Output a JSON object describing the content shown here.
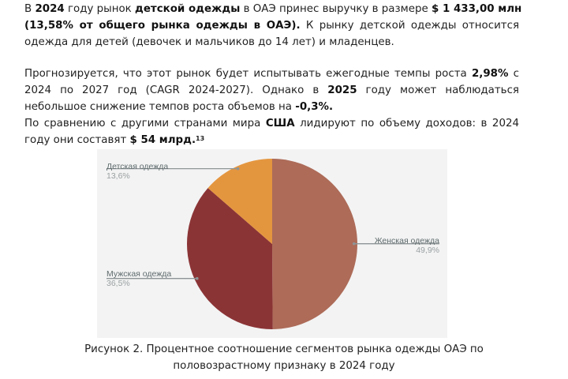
{
  "paragraph1": {
    "l1_a": "В ",
    "l1_b": "2024",
    "l1_c": " году рынок ",
    "l1_d": "детской одежды",
    "l1_e": " в ОАЭ принес выручку в размере ",
    "l1_f": "$ 1 433,00 млн",
    "l2_a": "(13,58% от общего рынка одежды в ОАЭ).",
    "l2_b": " К рынку детской одежды относится",
    "l3": "одежда для детей (девочек и мальчиков до 14 лет) и младенцев."
  },
  "paragraph2": {
    "l1_a": "Прогнозируется, что этот рынок будет испытывать ежегодные темпы роста ",
    "l1_b": "2,98%",
    "l1_c": " с",
    "l2_a": "2024 по 2027 год (CAGR 2024-2027). Однако в ",
    "l2_b": "2025",
    "l2_c": " году может наблюдаться",
    "l3_a": "небольшое снижение темпов роста объемов на ",
    "l3_b": "-0,3%."
  },
  "paragraph3": {
    "l1_a": "По сравнению с другими странами мира ",
    "l1_b": "США",
    "l1_c": " лидируют по объему доходов: в 2024",
    "l2_a": "году они составят ",
    "l2_b": "$ 54 млрд.",
    "l2_sup": "13"
  },
  "chart_data": {
    "type": "pie",
    "title": "",
    "categories": [
      "Женская одежда",
      "Мужская одежда",
      "Детская одежда"
    ],
    "values": [
      49.9,
      36.5,
      13.6
    ],
    "value_labels": [
      "49,9%",
      "36,5%",
      "13,6%"
    ],
    "colors": [
      "#ad6b58",
      "#8b3436",
      "#e4963f"
    ],
    "legend_position": "labels-with-leader-lines",
    "background": "#f3f3f3"
  },
  "caption": {
    "line1": "Рисунок 2. Процентное соотношение сегментов рынка одежды ОАЭ по",
    "line2": "половозрастному признаку в 2024 году"
  }
}
